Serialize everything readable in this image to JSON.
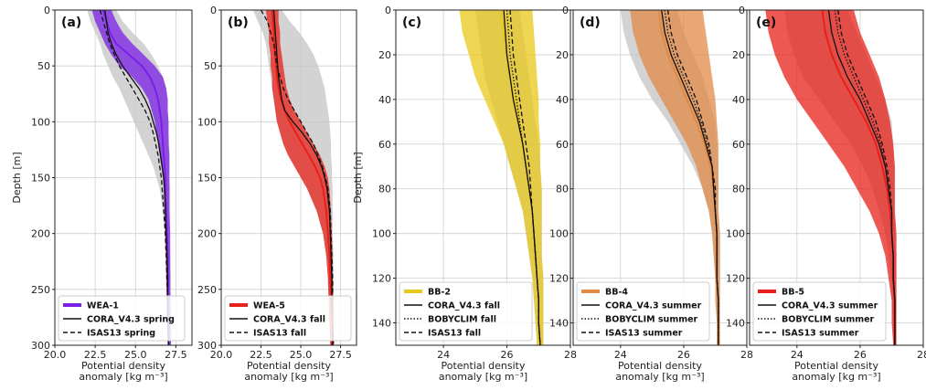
{
  "colors": {
    "purple": "#7a1fe6",
    "red": "#e8201a",
    "yellow": "#e8c81a",
    "orange": "#e08a45",
    "grey": "#c4c4c4"
  },
  "chart_data": [
    {
      "type": "line",
      "panel_label": "(a)",
      "color": "purple",
      "xlim": [
        20,
        28.5
      ],
      "ylim": [
        0,
        300
      ],
      "xticks": [
        20.0,
        22.5,
        25.0,
        27.5
      ],
      "xtick_labels": [
        "20.0",
        "22.5",
        "25.0",
        "27.5"
      ],
      "yticks": [
        0,
        50,
        100,
        150,
        200,
        250,
        300
      ],
      "ytick_labels": [
        "0",
        "50",
        "100",
        "150",
        "200",
        "250",
        "300"
      ],
      "ylabel": "Depth [m]",
      "xlabel_line1": "Potential density",
      "xlabel_line2": "anomaly [kg m⁻³]",
      "depth": [
        0,
        10,
        20,
        30,
        40,
        50,
        60,
        70,
        80,
        90,
        100,
        110,
        120,
        130,
        140,
        150,
        160,
        180,
        200,
        220,
        240,
        260,
        280,
        300
      ],
      "band_low": [
        22.3,
        22.5,
        22.8,
        23.1,
        23.5,
        24.0,
        24.8,
        25.4,
        25.8,
        26.0,
        26.2,
        26.3,
        26.4,
        26.5,
        26.6,
        26.7,
        26.75,
        26.8,
        26.85,
        26.9,
        26.9,
        26.95,
        27.0,
        27.0
      ],
      "band_high": [
        23.5,
        23.8,
        24.2,
        24.8,
        25.5,
        26.2,
        26.7,
        26.9,
        27.0,
        27.0,
        27.05,
        27.05,
        27.05,
        27.1,
        27.1,
        27.1,
        27.1,
        27.1,
        27.15,
        27.15,
        27.15,
        27.15,
        27.2,
        27.2
      ],
      "grey_low": [
        22.0,
        22.2,
        22.5,
        22.8,
        23.0,
        23.3,
        23.6,
        24.0,
        24.3,
        24.6,
        24.9,
        25.2,
        25.5,
        25.8,
        26.1,
        26.3,
        26.5,
        26.7,
        26.8,
        26.85,
        26.9,
        26.9,
        26.95,
        27.0
      ],
      "grey_high": [
        23.8,
        24.2,
        24.8,
        25.5,
        26.0,
        26.4,
        26.7,
        26.9,
        27.0,
        27.0,
        27.05,
        27.05,
        27.1,
        27.1,
        27.1,
        27.1,
        27.15,
        27.15,
        27.15,
        27.15,
        27.2,
        27.2,
        27.2,
        27.2
      ],
      "series": [
        {
          "name": "WEA-1",
          "style": "band",
          "values": [
            23.0,
            23.2,
            23.4,
            23.8,
            24.6,
            25.4,
            25.9,
            26.2,
            26.4,
            26.5,
            26.6,
            26.65,
            26.7,
            26.75,
            26.8,
            26.85,
            26.85,
            26.9,
            26.95,
            27.0,
            27.0,
            27.0,
            27.05,
            27.05
          ]
        },
        {
          "name": "CORA_V4.3 spring",
          "style": "solid",
          "values": [
            23.1,
            23.2,
            23.3,
            23.5,
            23.8,
            24.2,
            24.7,
            25.2,
            25.6,
            25.9,
            26.1,
            26.3,
            26.45,
            26.55,
            26.65,
            26.75,
            26.8,
            26.85,
            26.9,
            26.95,
            27.0,
            27.0,
            27.0,
            27.05
          ]
        },
        {
          "name": "ISAS13 spring",
          "style": "dashed",
          "values": [
            22.8,
            23.0,
            23.2,
            23.4,
            23.7,
            24.0,
            24.4,
            24.8,
            25.2,
            25.6,
            25.9,
            26.1,
            26.25,
            26.4,
            26.5,
            26.6,
            26.65,
            26.75,
            26.85,
            26.9,
            26.95,
            27.0,
            27.0,
            27.05
          ]
        }
      ]
    },
    {
      "type": "line",
      "panel_label": "(b)",
      "color": "red",
      "xlim": [
        20,
        28.5
      ],
      "ylim": [
        0,
        300
      ],
      "xticks": [
        20.0,
        22.5,
        25.0,
        27.5
      ],
      "xtick_labels": [
        "20.0",
        "22.5",
        "25.0",
        "27.5"
      ],
      "yticks": [
        0,
        50,
        100,
        150,
        200,
        250,
        300
      ],
      "ytick_labels": [
        "0",
        "50",
        "100",
        "150",
        "200",
        "250",
        "300"
      ],
      "ylabel": "",
      "xlabel_line1": "Potential density",
      "xlabel_line2": "anomaly [kg m⁻³]",
      "depth": [
        0,
        10,
        20,
        30,
        40,
        50,
        60,
        70,
        80,
        90,
        100,
        110,
        120,
        130,
        140,
        150,
        160,
        180,
        200,
        220,
        240,
        260,
        280,
        300
      ],
      "band_low": [
        22.8,
        22.9,
        23.0,
        23.0,
        23.1,
        23.1,
        23.2,
        23.2,
        23.3,
        23.4,
        23.5,
        23.7,
        23.9,
        24.2,
        24.6,
        25.0,
        25.4,
        26.0,
        26.4,
        26.6,
        26.7,
        26.75,
        26.8,
        26.85
      ],
      "band_high": [
        23.6,
        23.6,
        23.7,
        23.7,
        23.8,
        23.9,
        24.0,
        24.1,
        24.3,
        24.6,
        25.0,
        25.4,
        25.8,
        26.2,
        26.5,
        26.7,
        26.8,
        26.9,
        26.95,
        27.0,
        27.0,
        27.05,
        27.05,
        27.05
      ],
      "grey_low": [
        22.0,
        22.3,
        22.6,
        22.8,
        22.9,
        23.0,
        23.1,
        23.2,
        23.3,
        23.4,
        23.5,
        23.7,
        23.9,
        24.2,
        24.6,
        25.0,
        25.4,
        26.0,
        26.4,
        26.6,
        26.7,
        26.75,
        26.8,
        26.85
      ],
      "grey_high": [
        23.8,
        24.3,
        24.9,
        25.4,
        25.8,
        26.1,
        26.3,
        26.5,
        26.6,
        26.7,
        26.8,
        26.85,
        26.9,
        26.9,
        26.95,
        26.95,
        27.0,
        27.0,
        27.0,
        27.05,
        27.05,
        27.05,
        27.05,
        27.1
      ],
      "series": [
        {
          "name": "WEA-5",
          "style": "band",
          "values": [
            23.2,
            23.25,
            23.3,
            23.35,
            23.4,
            23.45,
            23.5,
            23.6,
            23.75,
            24.0,
            24.3,
            24.7,
            25.1,
            25.5,
            25.9,
            26.2,
            26.4,
            26.6,
            26.7,
            26.8,
            26.85,
            26.9,
            26.9,
            26.95
          ]
        },
        {
          "name": "CORA_V4.3 fall",
          "style": "solid",
          "values": [
            23.3,
            23.35,
            23.4,
            23.45,
            23.5,
            23.55,
            23.6,
            23.7,
            23.8,
            24.0,
            24.5,
            25.1,
            25.6,
            26.0,
            26.3,
            26.5,
            26.65,
            26.8,
            26.85,
            26.9,
            26.95,
            26.95,
            27.0,
            27.0
          ]
        },
        {
          "name": "ISAS13 fall",
          "style": "dashed",
          "values": [
            22.5,
            22.9,
            23.1,
            23.3,
            23.4,
            23.5,
            23.7,
            23.9,
            24.2,
            24.6,
            25.0,
            25.4,
            25.8,
            26.1,
            26.35,
            26.55,
            26.7,
            26.85,
            26.9,
            26.95,
            27.0,
            27.0,
            27.0,
            27.05
          ]
        }
      ]
    },
    {
      "type": "line",
      "panel_label": "(c)",
      "color": "yellow",
      "xlim": [
        22.5,
        28
      ],
      "ylim": [
        0,
        150
      ],
      "xticks": [
        24,
        26,
        28
      ],
      "xtick_labels": [
        "24",
        "26",
        "28"
      ],
      "yticks": [
        0,
        20,
        40,
        60,
        80,
        100,
        120,
        140
      ],
      "ytick_labels": [
        "0",
        "20",
        "40",
        "60",
        "80",
        "100",
        "120",
        "140"
      ],
      "ylabel": "Depth [m]",
      "xlabel_line1": "Potential density",
      "xlabel_line2": "anomaly [kg m⁻³]",
      "depth": [
        0,
        10,
        20,
        30,
        40,
        50,
        60,
        70,
        80,
        90,
        100,
        110,
        120,
        130,
        140,
        150
      ],
      "band_low": [
        24.5,
        24.6,
        24.8,
        25.0,
        25.3,
        25.6,
        25.9,
        26.1,
        26.3,
        26.5,
        26.6,
        26.7,
        26.8,
        26.85,
        26.9,
        26.95
      ],
      "band_high": [
        26.8,
        26.85,
        26.9,
        26.95,
        27.0,
        27.0,
        27.05,
        27.05,
        27.1,
        27.1,
        27.1,
        27.1,
        27.15,
        27.15,
        27.15,
        27.15
      ],
      "grey_low": [
        25.0,
        25.1,
        25.2,
        25.3,
        25.5,
        25.7,
        25.9,
        26.1,
        26.3,
        26.5,
        26.6,
        26.7,
        26.8,
        26.85,
        26.9,
        26.95
      ],
      "grey_high": [
        26.4,
        26.5,
        26.6,
        26.7,
        26.8,
        26.9,
        27.0,
        27.05,
        27.1,
        27.1,
        27.1,
        27.1,
        27.15,
        27.15,
        27.15,
        27.15
      ],
      "series": [
        {
          "name": "BB-2",
          "style": "band",
          "values": [
            25.8,
            25.9,
            26.0,
            26.1,
            26.25,
            26.4,
            26.5,
            26.6,
            26.7,
            26.8,
            26.85,
            26.9,
            26.95,
            27.0,
            27.0,
            27.05
          ]
        },
        {
          "name": "CORA_V4.3 fall",
          "style": "solid",
          "values": [
            25.9,
            25.95,
            26.0,
            26.1,
            26.2,
            26.35,
            26.5,
            26.6,
            26.7,
            26.8,
            26.85,
            26.9,
            26.95,
            27.0,
            27.0,
            27.05
          ]
        },
        {
          "name": "BOBYCLIM fall",
          "style": "dotted",
          "values": [
            26.0,
            26.05,
            26.1,
            26.2,
            26.3,
            26.4,
            26.5,
            26.6,
            26.7,
            26.8,
            26.85,
            26.9,
            26.95,
            27.0,
            27.0,
            27.05
          ]
        },
        {
          "name": "ISAS13 fall",
          "style": "dashed",
          "values": [
            26.1,
            26.15,
            26.2,
            26.3,
            26.4,
            26.5,
            26.6,
            26.7,
            26.75,
            26.8,
            26.85,
            26.9,
            26.95,
            27.0,
            27.0,
            27.05
          ]
        }
      ]
    },
    {
      "type": "line",
      "panel_label": "(d)",
      "color": "orange",
      "xlim": [
        22.5,
        28
      ],
      "ylim": [
        0,
        150
      ],
      "xticks": [
        24,
        26,
        28
      ],
      "xtick_labels": [
        "24",
        "26",
        "28"
      ],
      "yticks": [
        0,
        20,
        40,
        60,
        80,
        100,
        120,
        140
      ],
      "ytick_labels": [
        "0",
        "20",
        "40",
        "60",
        "80",
        "100",
        "120",
        "140"
      ],
      "ylabel": "",
      "xlabel_line1": "Potential density",
      "xlabel_line2": "anomaly [kg m⁻³]",
      "depth": [
        0,
        10,
        20,
        30,
        40,
        50,
        60,
        70,
        80,
        90,
        100,
        110,
        120,
        130,
        140,
        150
      ],
      "band_low": [
        24.3,
        24.4,
        24.6,
        24.9,
        25.3,
        25.7,
        26.1,
        26.4,
        26.6,
        26.8,
        26.9,
        26.95,
        27.0,
        27.0,
        27.05,
        27.05
      ],
      "band_high": [
        26.6,
        26.7,
        26.8,
        26.9,
        27.0,
        27.05,
        27.1,
        27.1,
        27.1,
        27.1,
        27.15,
        27.15,
        27.15,
        27.15,
        27.15,
        27.15
      ],
      "grey_low": [
        24.0,
        24.1,
        24.3,
        24.6,
        25.0,
        25.5,
        25.9,
        26.3,
        26.6,
        26.8,
        26.9,
        26.95,
        27.0,
        27.0,
        27.05,
        27.05
      ],
      "grey_high": [
        25.8,
        26.0,
        26.3,
        26.6,
        26.8,
        27.0,
        27.05,
        27.1,
        27.1,
        27.1,
        27.15,
        27.15,
        27.15,
        27.15,
        27.15,
        27.15
      ],
      "series": [
        {
          "name": "BB-4",
          "style": "band",
          "values": [
            25.2,
            25.3,
            25.5,
            25.8,
            26.1,
            26.4,
            26.65,
            26.85,
            26.95,
            27.0,
            27.05,
            27.05,
            27.05,
            27.1,
            27.1,
            27.1
          ]
        },
        {
          "name": "CORA_V4.3 summer",
          "style": "solid",
          "values": [
            25.3,
            25.4,
            25.6,
            25.9,
            26.2,
            26.5,
            26.7,
            26.9,
            26.95,
            27.0,
            27.05,
            27.05,
            27.05,
            27.1,
            27.1,
            27.1
          ]
        },
        {
          "name": "BOBYCLIM summer",
          "style": "dotted",
          "values": [
            25.4,
            25.5,
            25.7,
            26.0,
            26.3,
            26.55,
            26.75,
            26.9,
            26.95,
            27.0,
            27.05,
            27.05,
            27.05,
            27.1,
            27.1,
            27.1
          ]
        },
        {
          "name": "ISAS13 summer",
          "style": "dashed",
          "values": [
            25.5,
            25.6,
            25.8,
            26.1,
            26.4,
            26.6,
            26.8,
            26.9,
            27.0,
            27.0,
            27.05,
            27.05,
            27.05,
            27.1,
            27.1,
            27.1
          ]
        }
      ]
    },
    {
      "type": "line",
      "panel_label": "(e)",
      "color": "red",
      "xlim": [
        22.5,
        28
      ],
      "ylim": [
        0,
        150
      ],
      "xticks": [
        24,
        26,
        28
      ],
      "xtick_labels": [
        "24",
        "26",
        "28"
      ],
      "yticks": [
        0,
        20,
        40,
        60,
        80,
        100,
        120,
        140
      ],
      "ytick_labels": [
        "0",
        "20",
        "40",
        "60",
        "80",
        "100",
        "120",
        "140"
      ],
      "ylabel": "",
      "xlabel_line1": "Potential density",
      "xlabel_line2": "anomaly [kg m⁻³]",
      "depth": [
        0,
        10,
        20,
        30,
        40,
        50,
        60,
        70,
        80,
        90,
        100,
        110,
        120,
        130,
        140,
        150
      ],
      "band_low": [
        23.0,
        23.1,
        23.3,
        23.6,
        24.0,
        24.5,
        25.0,
        25.5,
        25.9,
        26.3,
        26.6,
        26.8,
        26.9,
        27.0,
        27.0,
        27.05
      ],
      "band_high": [
        25.8,
        26.0,
        26.3,
        26.6,
        26.8,
        26.95,
        27.05,
        27.1,
        27.1,
        27.1,
        27.15,
        27.15,
        27.15,
        27.15,
        27.15,
        27.15
      ],
      "grey_low": [
        23.6,
        23.7,
        23.9,
        24.2,
        24.7,
        25.2,
        25.7,
        26.1,
        26.4,
        26.6,
        26.8,
        26.9,
        27.0,
        27.0,
        27.05,
        27.05
      ],
      "grey_high": [
        25.6,
        25.9,
        26.2,
        26.5,
        26.8,
        27.0,
        27.05,
        27.1,
        27.1,
        27.1,
        27.15,
        27.15,
        27.15,
        27.15,
        27.15,
        27.15
      ],
      "series": [
        {
          "name": "BB-5",
          "style": "band",
          "values": [
            24.8,
            24.9,
            25.1,
            25.4,
            25.8,
            26.2,
            26.5,
            26.7,
            26.85,
            26.95,
            27.0,
            27.05,
            27.05,
            27.1,
            27.1,
            27.1
          ]
        },
        {
          "name": "CORA_V4.3 summer",
          "style": "solid",
          "values": [
            25.0,
            25.1,
            25.3,
            25.6,
            26.0,
            26.3,
            26.6,
            26.8,
            26.9,
            27.0,
            27.0,
            27.05,
            27.05,
            27.1,
            27.1,
            27.1
          ]
        },
        {
          "name": "BOBYCLIM summer",
          "style": "dotted",
          "values": [
            25.2,
            25.3,
            25.5,
            25.8,
            26.1,
            26.4,
            26.65,
            26.8,
            26.9,
            27.0,
            27.0,
            27.05,
            27.05,
            27.1,
            27.1,
            27.1
          ]
        },
        {
          "name": "ISAS13 summer",
          "style": "dashed",
          "values": [
            25.3,
            25.4,
            25.6,
            25.9,
            26.2,
            26.5,
            26.7,
            26.85,
            26.95,
            27.0,
            27.0,
            27.05,
            27.05,
            27.1,
            27.1,
            27.1
          ]
        }
      ]
    }
  ]
}
